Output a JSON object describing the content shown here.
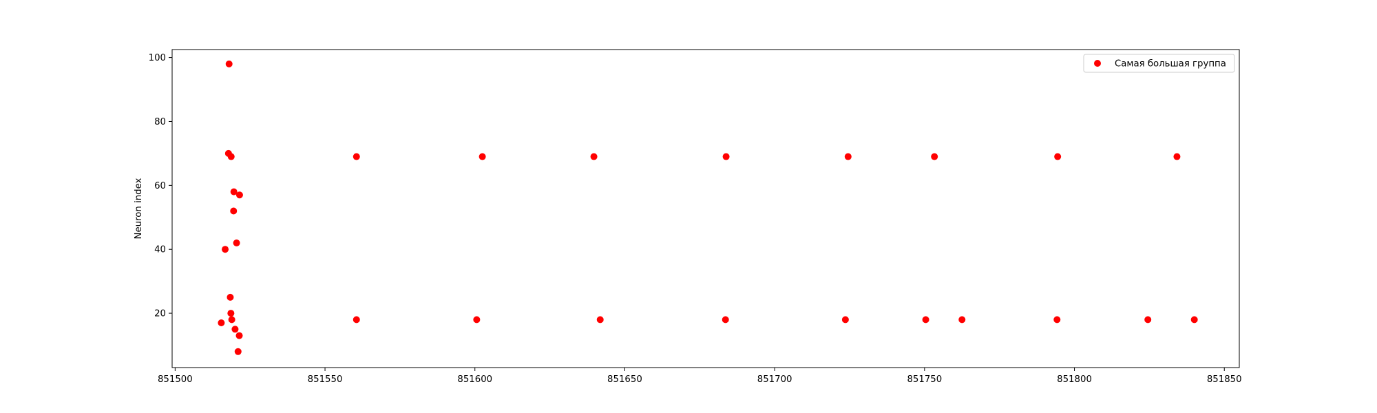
{
  "chart_data": {
    "type": "scatter",
    "title": "",
    "xlabel": "",
    "ylabel": "Neuron index",
    "xlim": [
      851499,
      851855
    ],
    "ylim": [
      3,
      102.5
    ],
    "xticks": [
      851500,
      851550,
      851600,
      851650,
      851700,
      851750,
      851800,
      851850
    ],
    "yticks": [
      20,
      40,
      60,
      80,
      100
    ],
    "grid": false,
    "legend_position": "top-right",
    "series": [
      {
        "name": "Самая большая группа",
        "color": "#ff0000",
        "marker": "circle",
        "points": [
          {
            "x": 851518.0,
            "y": 98
          },
          {
            "x": 851517.8,
            "y": 70
          },
          {
            "x": 851518.7,
            "y": 69
          },
          {
            "x": 851519.6,
            "y": 58
          },
          {
            "x": 851521.5,
            "y": 57
          },
          {
            "x": 851519.5,
            "y": 52
          },
          {
            "x": 851520.5,
            "y": 42
          },
          {
            "x": 851516.7,
            "y": 40
          },
          {
            "x": 851518.4,
            "y": 25
          },
          {
            "x": 851518.6,
            "y": 20
          },
          {
            "x": 851518.9,
            "y": 18
          },
          {
            "x": 851515.4,
            "y": 17
          },
          {
            "x": 851520.0,
            "y": 15
          },
          {
            "x": 851521.4,
            "y": 13
          },
          {
            "x": 851521.0,
            "y": 8
          },
          {
            "x": 851560.5,
            "y": 69
          },
          {
            "x": 851602.5,
            "y": 69
          },
          {
            "x": 851639.7,
            "y": 69
          },
          {
            "x": 851683.8,
            "y": 69
          },
          {
            "x": 851724.5,
            "y": 69
          },
          {
            "x": 851753.3,
            "y": 69
          },
          {
            "x": 851794.4,
            "y": 69
          },
          {
            "x": 851834.2,
            "y": 69
          },
          {
            "x": 851560.5,
            "y": 18
          },
          {
            "x": 851600.6,
            "y": 18
          },
          {
            "x": 851641.8,
            "y": 18
          },
          {
            "x": 851683.6,
            "y": 18
          },
          {
            "x": 851723.6,
            "y": 18
          },
          {
            "x": 851750.4,
            "y": 18
          },
          {
            "x": 851762.5,
            "y": 18
          },
          {
            "x": 851794.2,
            "y": 18
          },
          {
            "x": 851824.5,
            "y": 18
          },
          {
            "x": 851840.0,
            "y": 18
          }
        ]
      }
    ]
  }
}
